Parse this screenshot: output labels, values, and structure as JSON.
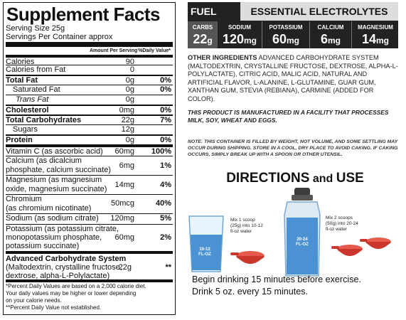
{
  "facts": {
    "title": "Supplement Facts",
    "serving_size": "Serving Size 25g",
    "servings_per_container": "Servings Per Container approx",
    "header_amount": "Amount Per Serving",
    "header_dv": "%Daily Value*",
    "rows": [
      {
        "label": "Calories",
        "amount": "90",
        "dv": ""
      },
      {
        "label": "Calories from Fat",
        "amount": "0",
        "dv": ""
      },
      {
        "label": "Total Fat",
        "amount": "0g",
        "dv": "0%"
      },
      {
        "label": "Saturated Fat",
        "amount": "0g",
        "dv": "0%"
      },
      {
        "label": "Trans Fat",
        "amount": "0g",
        "dv": ""
      },
      {
        "label": "Cholesterol",
        "amount": "0mg",
        "dv": "0%"
      },
      {
        "label": "Total Carbohydrates",
        "amount": "22g",
        "dv": "7%"
      },
      {
        "label": "Sugars",
        "amount": "12g",
        "dv": ""
      },
      {
        "label": "Protein",
        "amount": "0g",
        "dv": "0%"
      },
      {
        "label": "Vitamin C (as ascorbic acid)",
        "amount": "60mg",
        "dv": "100%"
      },
      {
        "label1": "Calcium (as dicalcium",
        "label2": "phosphate, calcium succinate)",
        "amount": "6mg",
        "dv": "1%"
      },
      {
        "label1": "Magnesium (as magnesium",
        "label2": "oxide, magnesium succinate)",
        "amount": "14mg",
        "dv": "4%"
      },
      {
        "label1": "Chromium",
        "label2": "(as chromium nicotinate)",
        "amount": "50mcg",
        "dv": "40%"
      },
      {
        "label": "Sodium (as sodium citrate)",
        "amount": "120mg",
        "dv": "5%"
      },
      {
        "label1": "Potassium (as potassium citrate,",
        "label2": "monopotassium phosphate,",
        "label3": "potassium succinate)",
        "amount": "60mg",
        "dv": "2%"
      },
      {
        "label1": "Advanced Carbohydrate System",
        "label2": "(Maltodextrin, crystalline fructose,",
        "label3": "dextrose, alpha-L-Polylactate)",
        "amount": "22g",
        "dv": "**"
      }
    ],
    "footnote1": "*Percent Daily Values are based on a 2,000 calorie diet.",
    "footnote2": "Your daily values may be higher or lower depending",
    "footnote3": "on your calorie needs.",
    "footnote4": "**Percent Daily Value not established."
  },
  "electrolytes": {
    "fuel": "FUEL",
    "essential": "ESSENTIAL ELECTROLYTES",
    "cells": [
      {
        "key": "CARBS",
        "value": "22",
        "unit": "g"
      },
      {
        "key": "SODIUM",
        "value": "120",
        "unit": "mg"
      },
      {
        "key": "POTASSIUM",
        "value": "60",
        "unit": "mg"
      },
      {
        "key": "CALCIUM",
        "value": "6",
        "unit": "mg"
      },
      {
        "key": "MAGNESIUM",
        "value": "14",
        "unit": "mg"
      }
    ]
  },
  "ingredients": {
    "heading": "OTHER INGREDIENTS",
    "text": "ADVANCED CARBOHYDRATE SYSTEM (MALTODEXTRIN, CRYSTALLINE FRUCTOSE, DEXTROSE, ALPHA-L-POLYLACTATE), CITRIC ACID, MALIC ACID, NATURAL AND ARTIFICIAL FLAVOR, L-ALANINE, L-GLUTAMINE, GUAR GUM, XANTHAN GUM, STEVIA (REBIANA), CARMINE (ADDED FOR COLOR).",
    "warning": "THIS PRODUCT IS MANUFACTURED IN A FACILITY THAT PROCESSES MILK, SOY, WHEAT AND EGGS.",
    "note": "NOTE: THIS CONTAINER IS FILLED BY WEIGHT, NOT VOLUME, AND SOME SETTLING MAY OCCUR DURING SHIPPING. STORE IN A COOL, DRY PLACE TO AVOID CAKING. IF CAKING OCCURS, SIMPLY BREAK UP WITH A SPOON OR OTHER UTENSIL."
  },
  "directions": {
    "title_big": "DIRECTIONS",
    "title_and": "and",
    "title_use": "USE",
    "step1_line1": "Mix 1 scoop",
    "step1_line2": "(25g) into 10-12",
    "step1_line3": "fl-oz water",
    "step2_line1": "Mix 2 scoops",
    "step2_line2": "(50g) into 20-24",
    "step2_line3": "fl-oz water",
    "glass_label1": "10-12",
    "glass_label2": "FL-OZ",
    "bottle_label1": "20-24",
    "bottle_label2": "FL-OZ",
    "line1": "Begin drinking 15 minutes before exercise.",
    "line2": "Drink 5 oz. every 15 minutes."
  }
}
